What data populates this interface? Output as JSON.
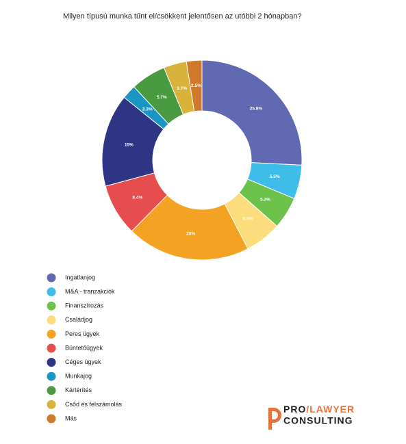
{
  "chart_data": {
    "type": "donut",
    "title": "Milyen típusú munka tűnt el/csökkent jelentősen az utóbbi 2 hónapban?",
    "categories": [
      "Ingatlanjog",
      "M&A - tranzakciók",
      "Finanszírozás",
      "Családjog",
      "Peres ügyek",
      "Büntetőügyek",
      "Céges ügyek",
      "Munkajog",
      "Kártérítés",
      "Csőd és felszámolás",
      "Más"
    ],
    "values": [
      25.8,
      5.5,
      5.2,
      5.9,
      20,
      8.4,
      15,
      2.3,
      5.7,
      3.7,
      2.5
    ],
    "value_labels": [
      "25.8%",
      "5.5%",
      "5.2%",
      "5.9%",
      "20%",
      "8.4%",
      "15%",
      "2.3%",
      "5.7%",
      "3.7%",
      "2.5%"
    ],
    "colors": [
      "#6169b3",
      "#3dbde8",
      "#6cc24a",
      "#fcdd7d",
      "#f4a224",
      "#e54d4f",
      "#2f3585",
      "#1b95c3",
      "#4a9a42",
      "#d9b23c",
      "#cf7a2a"
    ]
  },
  "logo": {
    "pro": "PRO",
    "lawyer": "/LAWYER",
    "consulting": "CONSULTING"
  }
}
